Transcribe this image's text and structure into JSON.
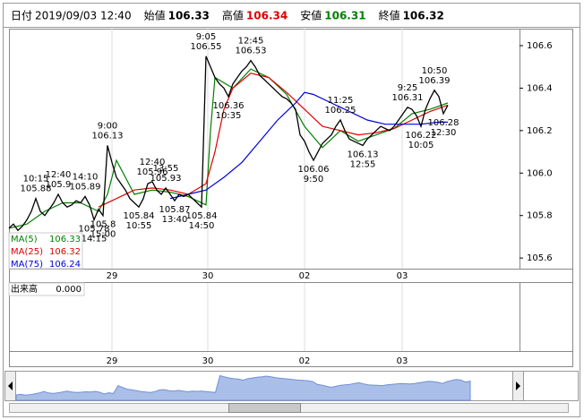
{
  "chart_data": {
    "type": "line",
    "header": [
      {
        "label": "日付",
        "value": "2019/09/03 12:40",
        "color": "#000000"
      },
      {
        "label": "始値",
        "value": 106.33,
        "color": "#000000"
      },
      {
        "label": "高値",
        "value": 106.34,
        "color": "#e00000"
      },
      {
        "label": "安値",
        "value": 106.31,
        "color": "#008000"
      },
      {
        "label": "終値",
        "value": 106.32,
        "color": "#000000"
      }
    ],
    "x": [
      0,
      1,
      2,
      3,
      4,
      5,
      6,
      7,
      8,
      9,
      10,
      11,
      12,
      13,
      14,
      15,
      16,
      17,
      18,
      19,
      20,
      21,
      22,
      23,
      24,
      25,
      26,
      27,
      28,
      29,
      30,
      31,
      32,
      33,
      34,
      35,
      36,
      37,
      38,
      39,
      40,
      41,
      42,
      43,
      44,
      45,
      46,
      47,
      48,
      49,
      50,
      51,
      52,
      53,
      54,
      55,
      56,
      57,
      58,
      59,
      60,
      61,
      62,
      63,
      64,
      65,
      66,
      67,
      68,
      69,
      70,
      71,
      72,
      73,
      74,
      75,
      76,
      77,
      78,
      79,
      80,
      81,
      82,
      83,
      84,
      85,
      86,
      87,
      88,
      89,
      90,
      91,
      92,
      93,
      94,
      95,
      96,
      97,
      98
    ],
    "values": [
      105.74,
      105.76,
      105.73,
      105.75,
      105.78,
      105.82,
      105.88,
      105.82,
      105.8,
      105.83,
      105.86,
      105.9,
      105.86,
      105.84,
      105.85,
      105.87,
      105.86,
      105.89,
      105.85,
      105.78,
      105.83,
      105.8,
      106.13,
      106.05,
      105.98,
      105.95,
      105.92,
      105.88,
      105.86,
      105.84,
      105.88,
      105.95,
      105.96,
      105.92,
      105.9,
      105.93,
      105.9,
      105.87,
      105.9,
      105.89,
      105.9,
      105.88,
      105.86,
      105.84,
      106.55,
      106.5,
      106.45,
      106.42,
      106.4,
      106.36,
      106.42,
      106.45,
      106.48,
      106.5,
      106.53,
      106.5,
      106.46,
      106.44,
      106.42,
      106.4,
      106.38,
      106.36,
      106.35,
      106.33,
      106.3,
      106.18,
      106.15,
      106.1,
      106.06,
      106.1,
      106.14,
      106.16,
      106.18,
      106.22,
      106.25,
      106.2,
      106.16,
      106.15,
      106.14,
      106.13,
      106.16,
      106.18,
      106.2,
      106.22,
      106.21,
      106.2,
      106.22,
      106.25,
      106.28,
      106.31,
      106.3,
      106.27,
      106.22,
      106.3,
      106.35,
      106.39,
      106.36,
      106.28,
      106.32
    ],
    "color": "#000000",
    "series": [
      {
        "name": "MA(5)",
        "color": "#008000",
        "current": 106.33,
        "x": [
          0,
          4,
          8,
          12,
          16,
          20,
          22,
          24,
          28,
          32,
          36,
          40,
          44,
          45,
          46,
          50,
          54,
          58,
          62,
          66,
          70,
          74,
          78,
          82,
          86,
          90,
          94,
          98
        ],
        "values": [
          105.74,
          105.76,
          105.82,
          105.86,
          105.86,
          105.82,
          105.9,
          106.06,
          105.9,
          105.92,
          105.91,
          105.89,
          105.85,
          106.2,
          106.45,
          106.4,
          106.49,
          106.45,
          106.37,
          106.22,
          106.12,
          106.2,
          106.15,
          106.18,
          106.21,
          106.28,
          106.3,
          106.33
        ]
      },
      {
        "name": "MA(25)",
        "color": "#e00000",
        "current": 106.32,
        "x": [
          20,
          24,
          28,
          32,
          36,
          40,
          44,
          46,
          48,
          50,
          54,
          58,
          62,
          66,
          70,
          74,
          78,
          82,
          86,
          90,
          94,
          98
        ],
        "values": [
          105.84,
          105.88,
          105.92,
          105.93,
          105.92,
          105.9,
          105.95,
          106.1,
          106.3,
          106.4,
          106.47,
          106.45,
          106.38,
          106.3,
          106.22,
          106.2,
          106.18,
          106.19,
          106.21,
          106.25,
          106.29,
          106.32
        ]
      },
      {
        "name": "MA(75)",
        "color": "#0000e0",
        "current": 106.24,
        "x": [
          36,
          40,
          44,
          48,
          52,
          56,
          60,
          64,
          66,
          68,
          72,
          76,
          80,
          84,
          88,
          92,
          96,
          98
        ],
        "values": [
          105.88,
          105.9,
          105.92,
          105.98,
          106.05,
          106.15,
          106.25,
          106.33,
          106.38,
          106.37,
          106.33,
          106.29,
          106.25,
          106.23,
          106.23,
          106.23,
          106.24,
          106.24
        ]
      }
    ],
    "annotations": [
      {
        "time": "10:15",
        "value": 105.88,
        "x": 6
      },
      {
        "time": "12:40",
        "value": 105.9,
        "x": 11
      },
      {
        "time": "14:10",
        "value": 105.89,
        "x": 17
      },
      {
        "time": "14:15",
        "value": 105.78,
        "x": 19
      },
      {
        "time": "15:00",
        "value": 105.8,
        "x": 21
      },
      {
        "time": "9:00",
        "value": 106.13,
        "x": 22
      },
      {
        "time": "10:55",
        "value": 105.84,
        "x": 29
      },
      {
        "time": "12:40",
        "value": 105.96,
        "x": 32
      },
      {
        "time": "13:55",
        "value": 105.93,
        "x": 35
      },
      {
        "time": "13:40",
        "value": 105.87,
        "x": 37
      },
      {
        "time": "14:50",
        "value": 105.84,
        "x": 43
      },
      {
        "time": "9:05",
        "value": 106.55,
        "x": 44
      },
      {
        "time": "10:35",
        "value": 106.36,
        "x": 49
      },
      {
        "time": "12:45",
        "value": 106.53,
        "x": 54
      },
      {
        "time": "9:50",
        "value": 106.06,
        "x": 68
      },
      {
        "time": "11:25",
        "value": 106.25,
        "x": 74
      },
      {
        "time": "12:55",
        "value": 106.13,
        "x": 79
      },
      {
        "time": "9:25",
        "value": 106.31,
        "x": 89
      },
      {
        "time": "10:05",
        "value": 106.22,
        "x": 92
      },
      {
        "time": "10:50",
        "value": 106.39,
        "x": 95
      },
      {
        "time": "12:30",
        "value": 106.28,
        "x": 97
      }
    ],
    "xlim": [
      0,
      114
    ],
    "xticks": [
      {
        "value": 23,
        "label": "29"
      },
      {
        "value": 44.4,
        "label": "30"
      },
      {
        "value": 66,
        "label": "02"
      },
      {
        "value": 87.8,
        "label": "03"
      }
    ],
    "ylim": [
      105.55,
      106.68
    ],
    "yticks": [
      105.6,
      105.8,
      {
        "value": 106.0,
        "label": "106.0"
      },
      106.2,
      106.4,
      106.6
    ],
    "grid": "x",
    "volume_label": "出来高",
    "volume_value": "0.000"
  }
}
